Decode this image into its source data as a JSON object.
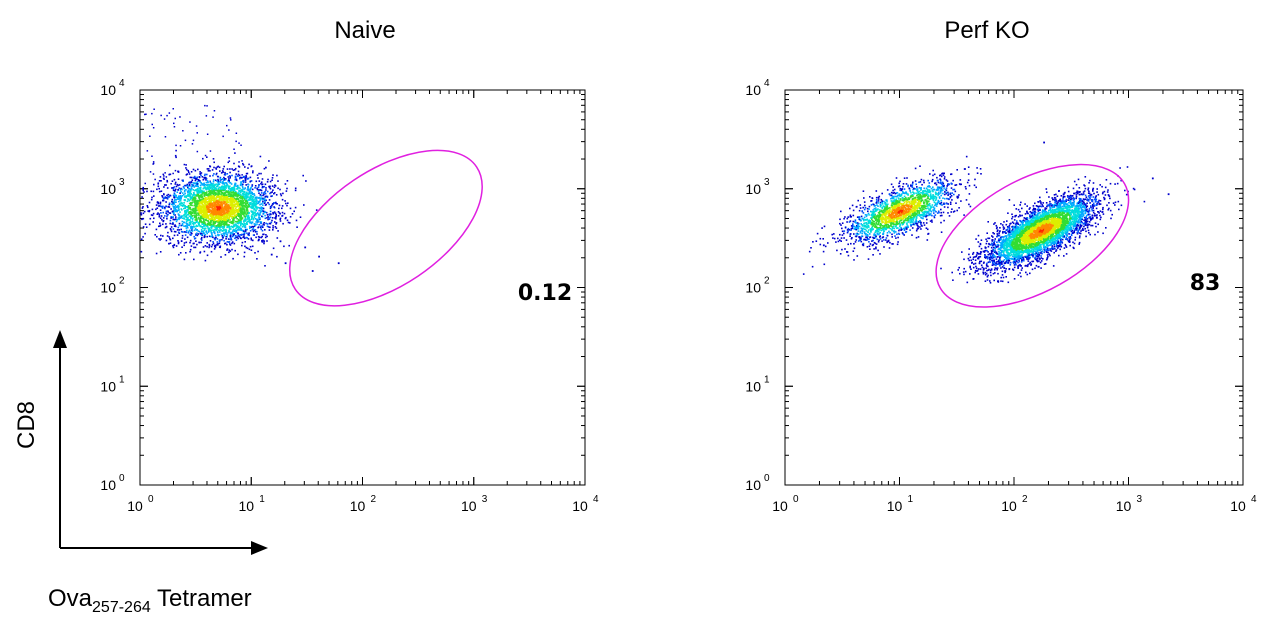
{
  "chart_data": [
    {
      "type": "scatter",
      "title": "Naive",
      "xlabel": "Ova",
      "xlabel_subscript": "257-264",
      "xlabel_suffix": " Tetramer",
      "ylabel": "CD8",
      "x_scale": "log",
      "y_scale": "log",
      "xlim": [
        1,
        10000
      ],
      "ylim": [
        1,
        10000
      ],
      "x_ticks": [
        {
          "base": "10",
          "exp": "0"
        },
        {
          "base": "10",
          "exp": "1"
        },
        {
          "base": "10",
          "exp": "2"
        },
        {
          "base": "10",
          "exp": "3"
        },
        {
          "base": "10",
          "exp": "4"
        }
      ],
      "y_ticks": [
        {
          "base": "10",
          "exp": "0"
        },
        {
          "base": "10",
          "exp": "1"
        },
        {
          "base": "10",
          "exp": "2"
        },
        {
          "base": "10",
          "exp": "3"
        },
        {
          "base": "10",
          "exp": "4"
        }
      ],
      "gate": {
        "shape": "ellipse",
        "label": "0.12",
        "color": "#e020e0",
        "x_range": [
          12,
          2200
        ],
        "y_range": [
          55,
          2900
        ]
      },
      "populations": [
        {
          "x_center": 5,
          "y_center": 650,
          "x_spread": 3.2,
          "y_spread": 2.2,
          "count": 3600
        }
      ],
      "sparse_events": [
        [
          15,
          220
        ],
        [
          20,
          180
        ],
        [
          30,
          260
        ],
        [
          40,
          210
        ],
        [
          60,
          180
        ],
        [
          35,
          150
        ],
        [
          18,
          300
        ]
      ],
      "density_colors": [
        "#0000cc",
        "#0055ff",
        "#00aaff",
        "#00dddd",
        "#33dd33",
        "#ddee00",
        "#ff8800",
        "#ff2200"
      ]
    },
    {
      "type": "scatter",
      "title": "Perf KO",
      "x_scale": "log",
      "y_scale": "log",
      "xlim": [
        1,
        10000
      ],
      "ylim": [
        1,
        10000
      ],
      "x_ticks": [
        {
          "base": "10",
          "exp": "0"
        },
        {
          "base": "10",
          "exp": "1"
        },
        {
          "base": "10",
          "exp": "2"
        },
        {
          "base": "10",
          "exp": "3"
        },
        {
          "base": "10",
          "exp": "4"
        }
      ],
      "y_ticks": [
        {
          "base": "10",
          "exp": "0"
        },
        {
          "base": "10",
          "exp": "1"
        },
        {
          "base": "10",
          "exp": "2"
        },
        {
          "base": "10",
          "exp": "3"
        },
        {
          "base": "10",
          "exp": "4"
        }
      ],
      "gate": {
        "shape": "ellipse",
        "label": "83",
        "color": "#e020e0",
        "x_range": [
          11,
          1900
        ],
        "y_range": [
          62,
          1800
        ]
      },
      "populations": [
        {
          "x_center": 10,
          "y_center": 600,
          "x_spread": 3.0,
          "y_spread": 1.7,
          "count": 1900,
          "tilt": 0.45
        },
        {
          "x_center": 170,
          "y_center": 380,
          "x_spread": 3.0,
          "y_spread": 1.75,
          "count": 4200,
          "tilt": 0.55
        }
      ],
      "sparse_events": [
        [
          2200,
          900
        ],
        [
          1600,
          1300
        ],
        [
          180,
          3000
        ]
      ],
      "density_colors": [
        "#0000cc",
        "#0055ff",
        "#00aaff",
        "#00dddd",
        "#33dd33",
        "#ddee00",
        "#ff8800",
        "#ff2200"
      ]
    }
  ]
}
